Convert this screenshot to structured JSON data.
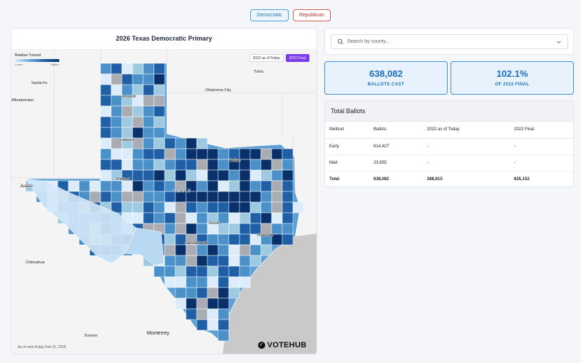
{
  "party_toggle": {
    "democratic": "Democratic",
    "republican": "Republican"
  },
  "map": {
    "title": "2026 Texas Democratic Primary",
    "legend": {
      "title": "Relative Turnout",
      "low": "Lower",
      "high": "Higher"
    },
    "compare": {
      "today": "2022 as of Today",
      "final": "2022 Final",
      "active": "final"
    },
    "cities": [
      {
        "name": "Tulsa"
      },
      {
        "name": "Santa Fe"
      },
      {
        "name": "Albuquerque"
      },
      {
        "name": "Amarillo"
      },
      {
        "name": "Oklahoma City"
      },
      {
        "name": "Lubbock"
      },
      {
        "name": "Dallas"
      },
      {
        "name": "Midland"
      },
      {
        "name": "Juárez"
      },
      {
        "name": "TEXAS"
      },
      {
        "name": "Austin"
      },
      {
        "name": "Houston"
      },
      {
        "name": "San Antonio"
      },
      {
        "name": "Chihuahua"
      },
      {
        "name": "Torreón"
      },
      {
        "name": "Monterrey"
      }
    ],
    "as_of_prefix": "As of end-of-day",
    "as_of_date": "Feb 22, 2026",
    "brand": "VOTEHUB",
    "colors": {
      "lowest": "#dcecfb",
      "low": "#9ecae1",
      "mid": "#4a90c9",
      "high": "#1f5fa6",
      "highest": "#08306b",
      "no_data": "#a9acb2",
      "water": "#c9c9c9"
    }
  },
  "search": {
    "placeholder": "Search by county..."
  },
  "stats": {
    "ballots_cast": {
      "value": "638,082",
      "label": "BALLOTS CAST"
    },
    "pct_of_final": {
      "value": "102.1%",
      "label": "OF 2022 FINAL"
    }
  },
  "ballots_table": {
    "title": "Total Ballots",
    "columns": [
      "Method",
      "Ballots",
      "2022 as of Today",
      "2022 Final"
    ],
    "rows": [
      [
        "Early",
        "614,427",
        "-",
        "-"
      ],
      [
        "Mail",
        "23,655",
        "-",
        "-"
      ],
      [
        "Total",
        "638,082",
        "268,815",
        "625,152"
      ]
    ]
  }
}
